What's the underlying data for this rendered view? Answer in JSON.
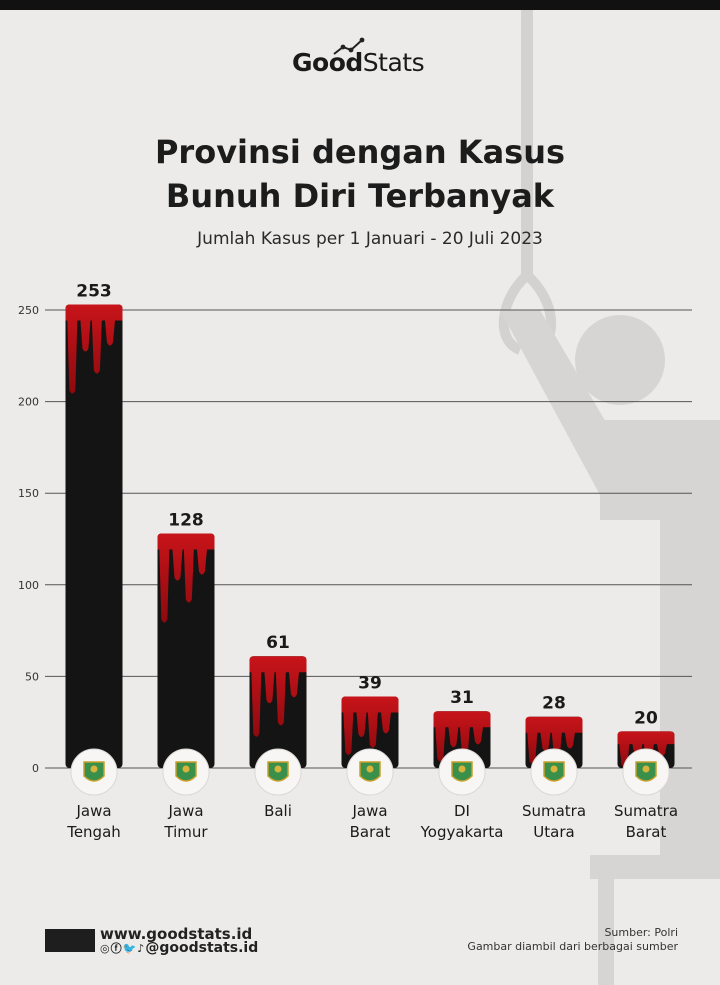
{
  "brand": {
    "logo_bold": "Good",
    "logo_light": "Stats"
  },
  "header": {
    "title_line1": "Provinsi dengan Kasus",
    "title_line2": "Bunuh Diri Terbanyak",
    "subtitle": "Jumlah Kasus per 1 Januari - 20 Juli 2023"
  },
  "chart_data": {
    "type": "bar",
    "title": "Provinsi dengan Kasus Bunuh Diri Terbanyak",
    "subtitle": "Jumlah Kasus per 1 Januari - 20 Juli 2023",
    "categories": [
      [
        "Jawa",
        "Tengah"
      ],
      [
        "Jawa",
        "Timur"
      ],
      [
        "Bali"
      ],
      [
        "Jawa",
        "Barat"
      ],
      [
        "DI",
        "Yogyakarta"
      ],
      [
        "Sumatra",
        "Utara"
      ],
      [
        "Sumatra",
        "Barat"
      ]
    ],
    "values": [
      253,
      128,
      61,
      39,
      31,
      28,
      20
    ],
    "yticks": [
      0,
      50,
      100,
      150,
      200,
      250
    ],
    "ylim": [
      0,
      250
    ],
    "grid": true,
    "colors": {
      "bar": "#141414",
      "blood": "#b30f14",
      "grid": "#555555"
    },
    "xlabel": "",
    "ylabel": ""
  },
  "footer": {
    "website": "www.goodstats.id",
    "social_handle": "@goodstats.id",
    "social_icons": [
      "instagram-icon",
      "facebook-icon",
      "twitter-icon",
      "tiktok-icon"
    ],
    "source": "Sumber: Polri",
    "image_credit": "Gambar diambil dari berbagai sumber"
  }
}
